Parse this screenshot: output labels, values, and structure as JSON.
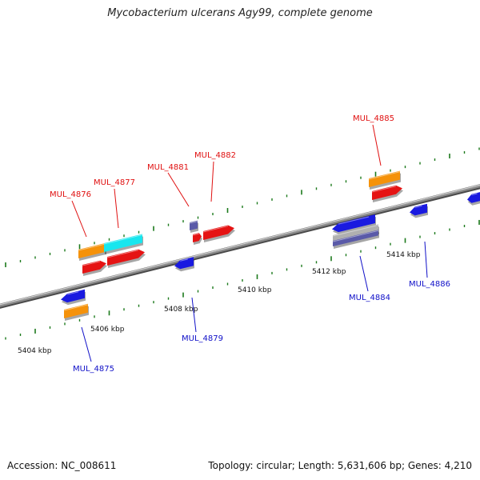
{
  "title": "Mycobacterium ulcerans Agy99, complete genome",
  "footer": {
    "accession": "Accession: NC_008611",
    "stats": "Topology: circular; Length: 5,631,606 bp; Genes: 4,210"
  },
  "colors": {
    "backbone": "#8a8a8a",
    "tick": "#1c7a1c",
    "label_forward": "#e01010",
    "label_reverse": "#1010c8",
    "gene_red": "#e51313",
    "gene_orange": "#f5920a",
    "gene_cyan": "#18e6ee",
    "gene_blue": "#1a1ae0",
    "gene_slate": "#5a5aa8",
    "gene_grey": "#b0b0b0"
  },
  "axis": {
    "unit": "kbp",
    "tick_labels": [
      "5404 kbp",
      "5406 kbp",
      "5408 kbp",
      "5410 kbp",
      "5412 kbp",
      "5414 kbp"
    ]
  },
  "genes": {
    "forward": [
      "MUL_4876",
      "MUL_4877",
      "MUL_4881",
      "MUL_4882",
      "MUL_4885"
    ],
    "reverse": [
      "MUL_4875",
      "MUL_4879",
      "MUL_4884",
      "MUL_4886"
    ]
  }
}
